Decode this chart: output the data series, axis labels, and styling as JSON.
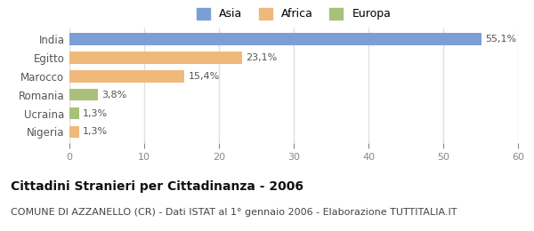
{
  "categories": [
    "India",
    "Egitto",
    "Marocco",
    "Romania",
    "Ucraina",
    "Nigeria"
  ],
  "values": [
    55.1,
    23.1,
    15.4,
    3.8,
    1.3,
    1.3
  ],
  "labels": [
    "55,1%",
    "23,1%",
    "15,4%",
    "3,8%",
    "1,3%",
    "1,3%"
  ],
  "colors": [
    "#7b9fd4",
    "#f0b97c",
    "#f0b97c",
    "#a8c07a",
    "#a8c07a",
    "#f0b97c"
  ],
  "legend_labels": [
    "Asia",
    "Africa",
    "Europa"
  ],
  "legend_colors": [
    "#7b9fd4",
    "#f0b97c",
    "#a8c07a"
  ],
  "xlim": [
    0,
    60
  ],
  "xticks": [
    0,
    10,
    20,
    30,
    40,
    50,
    60
  ],
  "title": "Cittadini Stranieri per Cittadinanza - 2006",
  "subtitle": "COMUNE DI AZZANELLO (CR) - Dati ISTAT al 1° gennaio 2006 - Elaborazione TUTTITALIA.IT",
  "title_fontsize": 10,
  "subtitle_fontsize": 8,
  "bg_color": "#ffffff",
  "plot_bg_color": "#ffffff",
  "grid_color": "#e0e0e8",
  "label_color": "#555555",
  "tick_color": "#888888"
}
